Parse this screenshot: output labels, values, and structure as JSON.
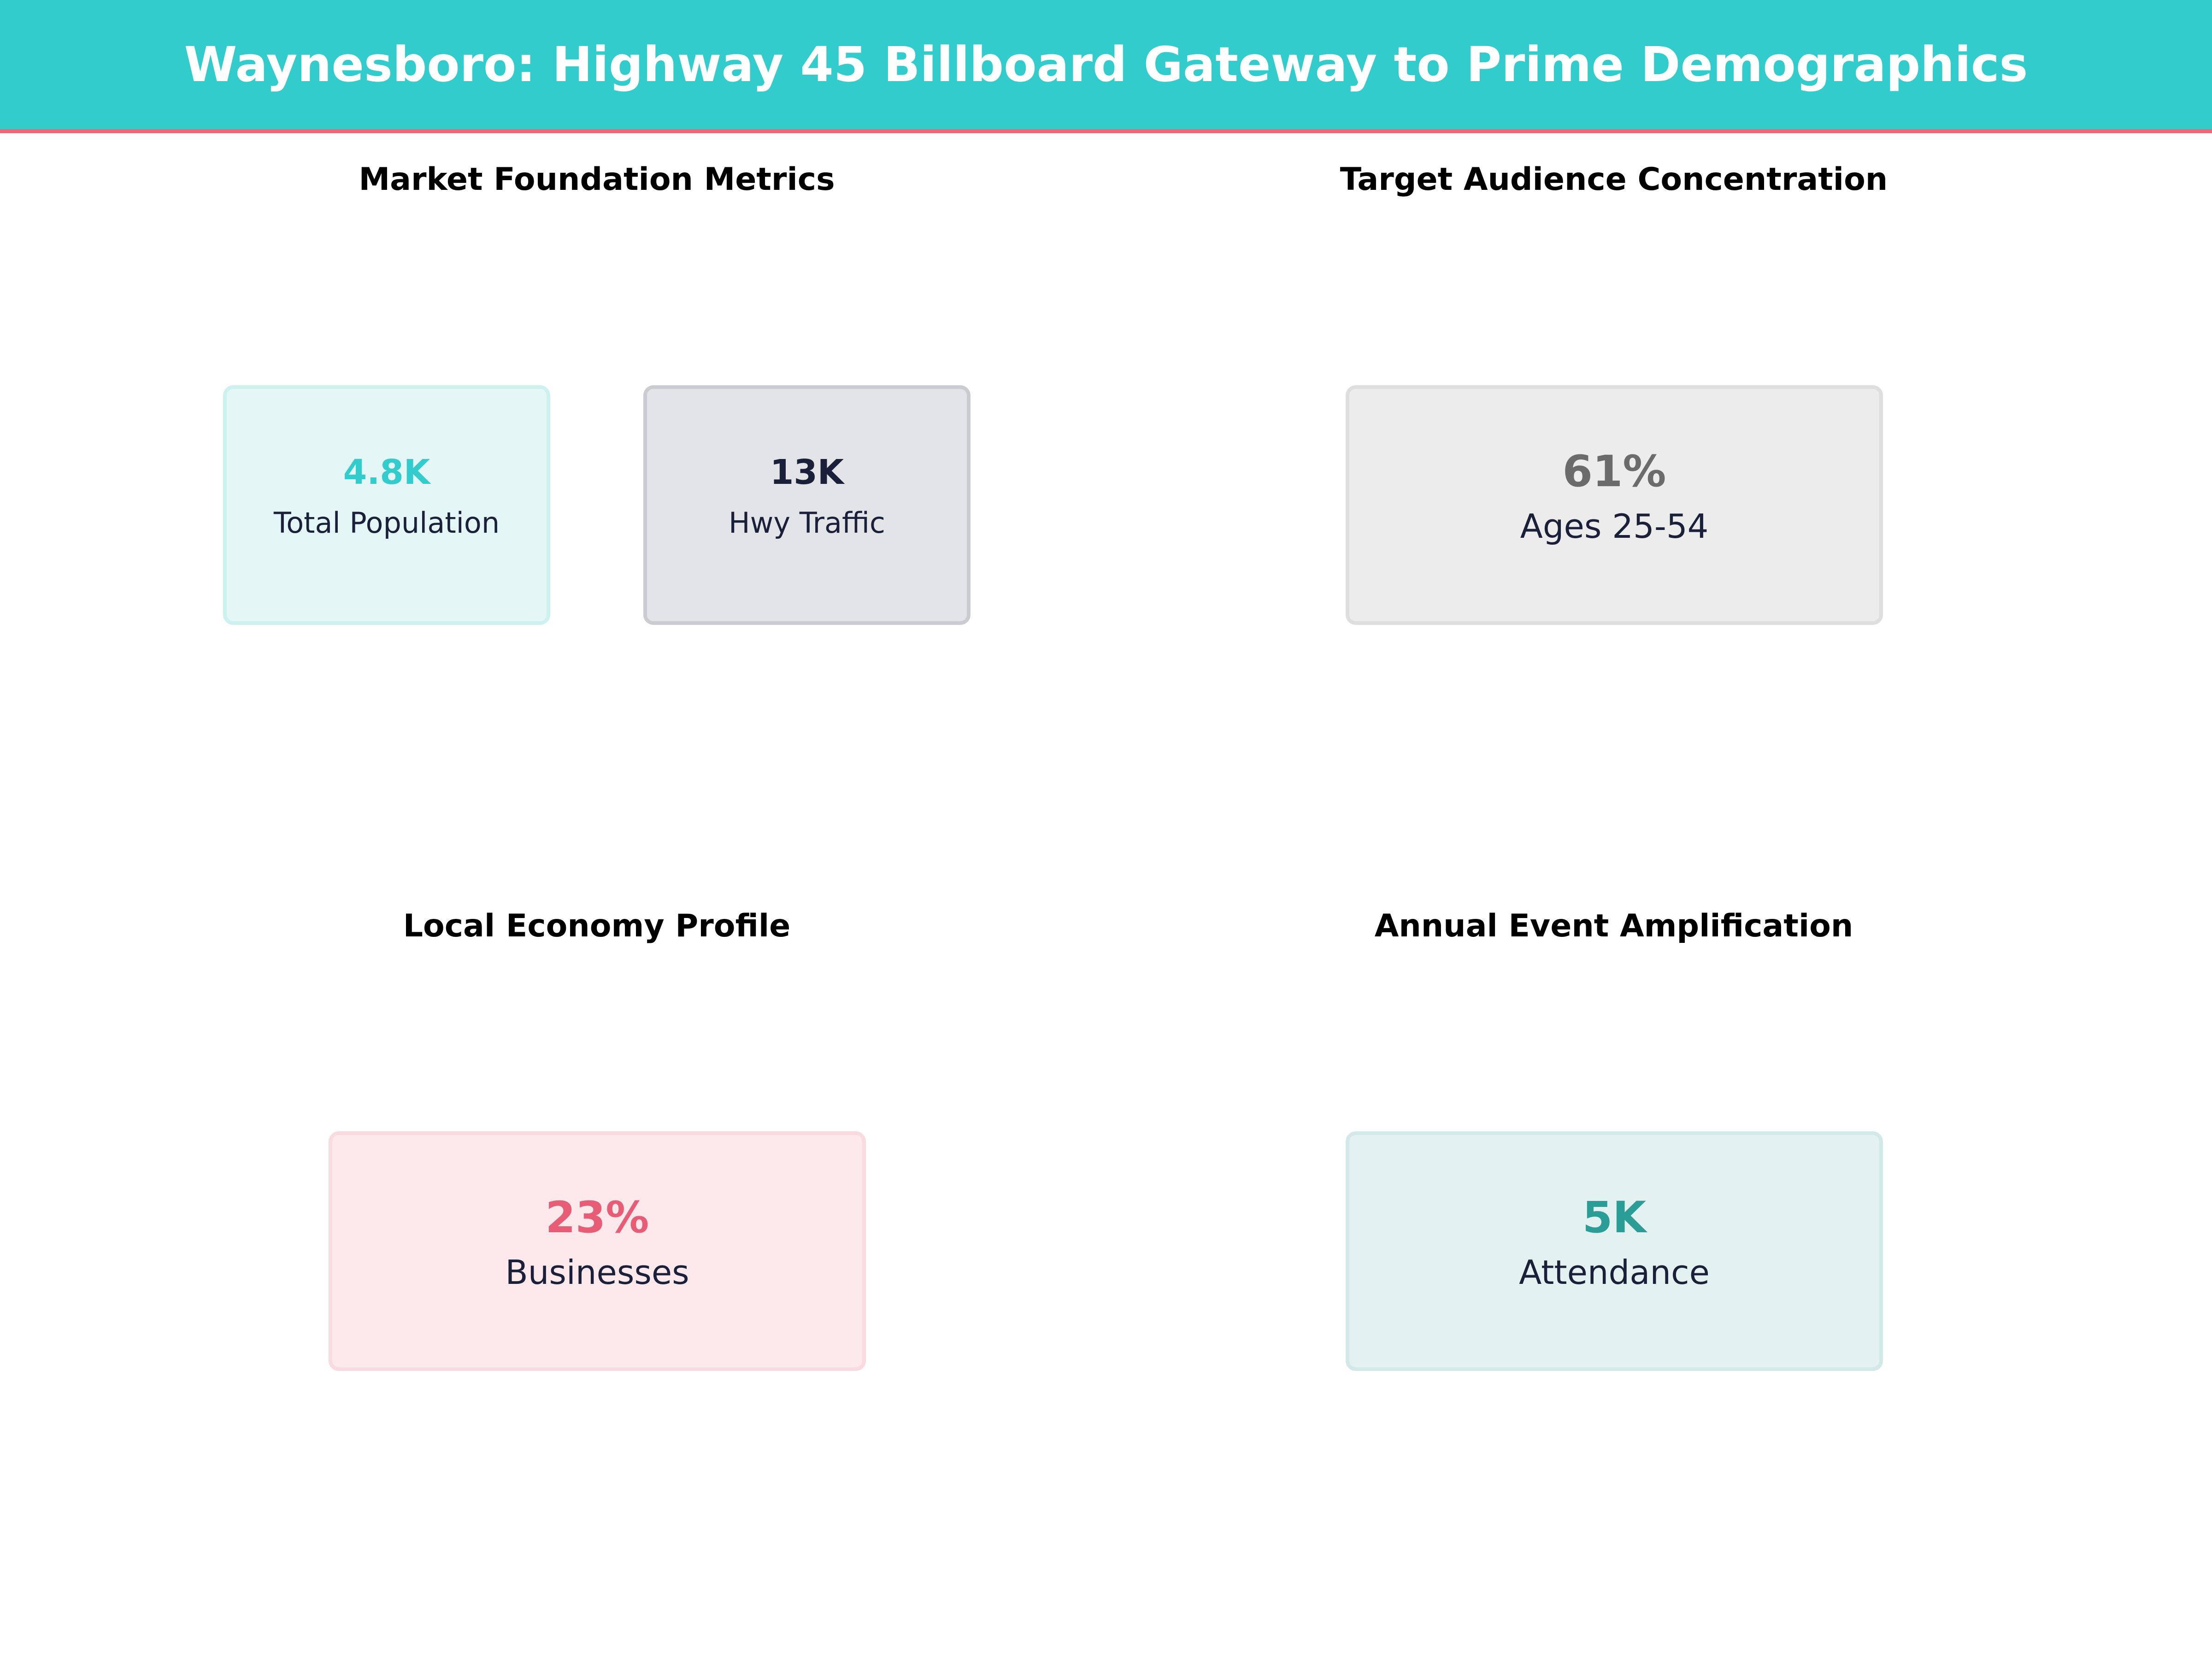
{
  "header": {
    "title": "Waynesboro: Highway 45 Billboard Gateway to Prime Demographics"
  },
  "colors": {
    "header_bg": "#33cccc",
    "accent_line": "#ee6677"
  },
  "sections": [
    {
      "title": "Market Foundation Metrics",
      "cards": [
        {
          "value": "4.8K",
          "label": "Total Population",
          "color": "#33cccc"
        },
        {
          "value": "13K",
          "label": "Hwy Traffic",
          "color": "#1a1f3a"
        }
      ]
    },
    {
      "title": "Target Audience Concentration",
      "cards": [
        {
          "value": "61%",
          "label": "Ages 25-54",
          "color": "#6b6b6b"
        }
      ]
    },
    {
      "title": "Local Economy Profile",
      "cards": [
        {
          "value": "23%",
          "label": "Businesses",
          "color": "#e85d75"
        }
      ]
    },
    {
      "title": "Annual Event Amplification",
      "cards": [
        {
          "value": "5K",
          "label": "Attendance",
          "color": "#2a9d96"
        }
      ]
    }
  ]
}
